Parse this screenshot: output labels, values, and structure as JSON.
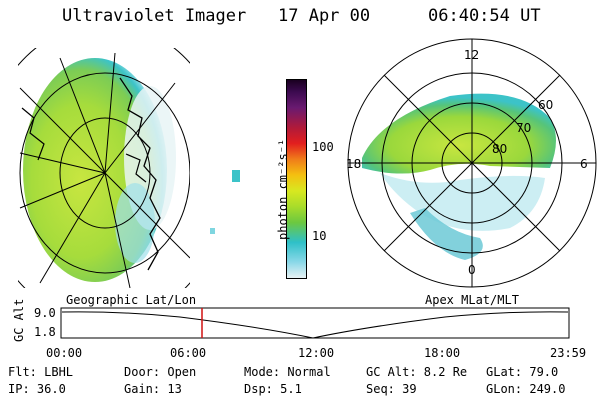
{
  "header": {
    "instrument": "Ultraviolet Imager",
    "date": "17 Apr 00",
    "time": "06:40:54 UT"
  },
  "colorbar": {
    "unit_label": "photon cm⁻²s⁻¹",
    "ticks": [
      "100",
      "10"
    ]
  },
  "left_image": {
    "projection_label": "Geographic Lat/Lon"
  },
  "right_image": {
    "projection_label": "Apex MLat/MLT",
    "mlt_labels": [
      "12",
      "18",
      "6",
      "0"
    ],
    "mlat_labels": [
      "60",
      "70",
      "80"
    ]
  },
  "orbit_plot": {
    "ylabel": "GC Alt",
    "ytick_top": "9.0",
    "ytick_bottom": "1.8",
    "x_ticks": [
      "00:00",
      "06:00",
      "12:00",
      "18:00",
      "23:59"
    ],
    "current_time_marker": "06:40:54"
  },
  "status": {
    "flt": "Flt: LBHL",
    "door": "Door: Open",
    "mode": "Mode: Normal",
    "gc_alt": "GC Alt: 8.2 Re",
    "glat": "GLat:  79.0",
    "ip": "IP: 36.0",
    "gain": "Gain: 13",
    "dsp": "Dsp:    5.1",
    "seq": "Seq: 39",
    "glon": "GLon: 249.0"
  }
}
